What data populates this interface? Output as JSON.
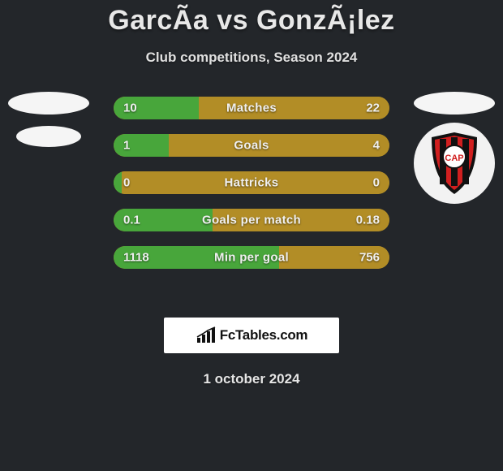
{
  "header": {
    "title": "GarcÃ­a vs GonzÃ¡lez",
    "subtitle": "Club competitions, Season 2024"
  },
  "crest_right": {
    "bg_color": "#f2f2f2",
    "shield_outline": "#111111",
    "stripe_red": "#d11f1f",
    "stripe_black": "#111111",
    "circle_fill": "#ffffff",
    "letters": "CAP",
    "letters_color": "#d11f1f"
  },
  "stats": {
    "left_team_color": "#48a63b",
    "right_team_color": "#b28d26",
    "track_color": "#b28d26",
    "rows": [
      {
        "label": "Matches",
        "left": "10",
        "right": "22",
        "left_pct": 31
      },
      {
        "label": "Goals",
        "left": "1",
        "right": "4",
        "left_pct": 20
      },
      {
        "label": "Hattricks",
        "left": "0",
        "right": "0",
        "left_pct": 3
      },
      {
        "label": "Goals per match",
        "left": "0.1",
        "right": "0.18",
        "left_pct": 36
      },
      {
        "label": "Min per goal",
        "left": "1118",
        "right": "756",
        "left_pct": 60
      }
    ]
  },
  "attribution": {
    "text": "FcTables.com"
  },
  "footer": {
    "date": "1 october 2024"
  },
  "colors": {
    "page_bg": "#23262a",
    "text": "#e8e8e8"
  }
}
